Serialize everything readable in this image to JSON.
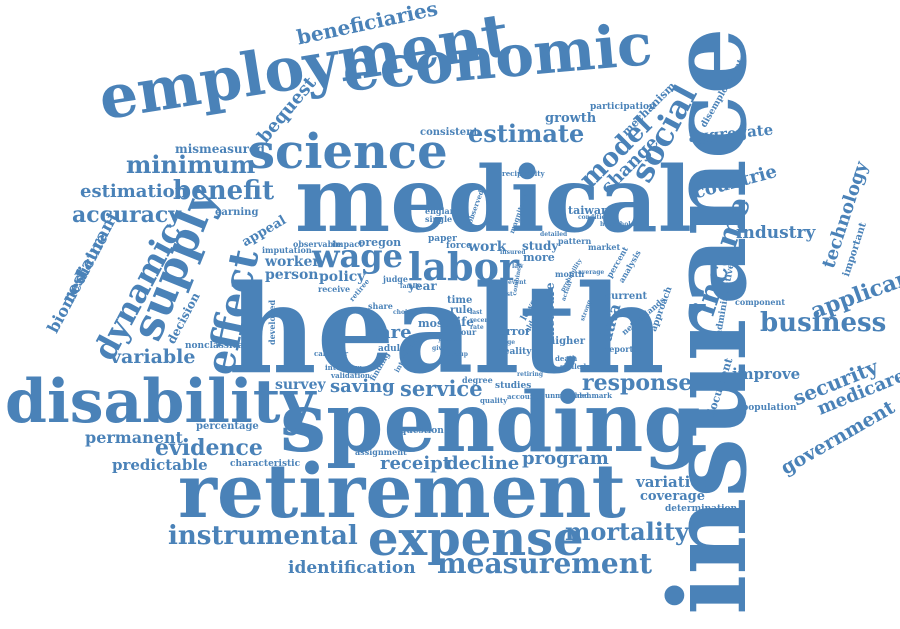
{
  "accent_color": "#4a82b8",
  "words": [
    "health",
    "insurance",
    "medical",
    "spending",
    "retirement",
    "disability",
    "employment",
    "economic",
    "science",
    "expense",
    "labor",
    "wage",
    "supply",
    "effect",
    "dynamic",
    "income",
    "social",
    "model",
    "estimate",
    "minimum",
    "benefit",
    "accuracy",
    "estimation",
    "beneficiaries",
    "bequest",
    "mismeasured",
    "growth",
    "consistent",
    "participation",
    "mechanism",
    "disemployment",
    "aggregate",
    "change",
    "countrie",
    "technology",
    "industry",
    "important",
    "applicant",
    "business",
    "security",
    "medicare",
    "government",
    "improve",
    "population",
    "response",
    "program",
    "receipt",
    "decline",
    "service",
    "saving",
    "survey",
    "evidence",
    "permanent",
    "percentage",
    "predictable",
    "characteristic",
    "instrumental",
    "identification",
    "measurement",
    "mortality",
    "variation",
    "coverage",
    "determination",
    "variable",
    "restaurant",
    "biomedicine",
    "decision",
    "nonclassical",
    "appeal",
    "earning",
    "worker",
    "person",
    "policy",
    "care",
    "year",
    "time",
    "rule",
    "life",
    "most",
    "data",
    "study",
    "more",
    "measure",
    "current",
    "document",
    "approach",
    "administrative",
    "component",
    "question",
    "assignment",
    "studies",
    "error",
    "higher",
    "reality",
    "adult",
    "work",
    "force",
    "paper",
    "england",
    "single",
    "taiwan",
    "oregon",
    "impact",
    "observable",
    "imputation",
    "judge",
    "receive",
    "percent",
    "analysis",
    "pattern",
    "market",
    "month",
    "share",
    "hour",
    "lower",
    "reported",
    "netherlands",
    "unmatched",
    "denmark",
    "degree",
    "developed",
    "calendar",
    "validation",
    "interview",
    "finding",
    "interaction",
    "quality",
    "account",
    "death",
    "skilled",
    "retiree",
    "reciprocity",
    "household",
    "detailed",
    "conditional",
    "observed",
    "magnitude",
    "recent",
    "rate",
    "last",
    "event",
    "combined",
    "actual",
    "page",
    "given",
    "strong",
    "family",
    "retiring",
    "older",
    "cost",
    "choice",
    "young",
    "average",
    "probability",
    "law",
    "group",
    "insured"
  ]
}
